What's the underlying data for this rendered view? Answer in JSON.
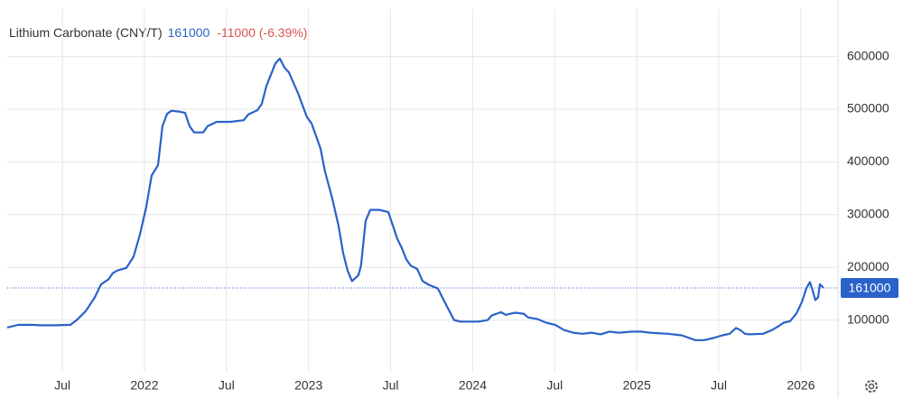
{
  "chart_data": {
    "type": "line",
    "title": "Lithium Carbonate (CNY/T)",
    "last_value": 161000,
    "change": "-11000 (-6.39%)",
    "color": "#2a62c9",
    "grid": true,
    "xlim": [
      2021.164,
      2026.226
    ],
    "ylim": [
      0,
      690000
    ],
    "xticks": [
      {
        "value": 2021.5,
        "label": "Jul"
      },
      2022,
      {
        "value": 2022.5,
        "label": "Jul"
      },
      2023,
      {
        "value": 2023.5,
        "label": "Jul"
      },
      2024,
      {
        "value": 2024.5,
        "label": "Jul"
      },
      2025,
      {
        "value": 2025.5,
        "label": "Jul"
      },
      2026
    ],
    "yticks": [
      100000,
      200000,
      300000,
      400000,
      500000,
      600000
    ],
    "x": [
      2021.164,
      2021.23,
      2021.312,
      2021.367,
      2021.45,
      2021.549,
      2021.587,
      2021.642,
      2021.697,
      2021.736,
      2021.78,
      2021.807,
      2021.835,
      2021.89,
      2021.934,
      2021.972,
      2022.011,
      2022.044,
      2022.083,
      2022.11,
      2022.138,
      2022.165,
      2022.22,
      2022.248,
      2022.275,
      2022.303,
      2022.358,
      2022.385,
      2022.44,
      2022.523,
      2022.605,
      2022.633,
      2022.688,
      2022.715,
      2022.743,
      2022.798,
      2022.825,
      2022.853,
      2022.88,
      2022.935,
      2022.99,
      2023.018,
      2023.045,
      2023.073,
      2023.1,
      2023.144,
      2023.183,
      2023.21,
      2023.238,
      2023.265,
      2023.304,
      2023.32,
      2023.348,
      2023.376,
      2023.431,
      2023.486,
      2023.541,
      2023.568,
      2023.596,
      2023.623,
      2023.662,
      2023.695,
      2023.733,
      2023.788,
      2023.843,
      2023.887,
      2023.926,
      2024.036,
      2024.091,
      2024.118,
      2024.146,
      2024.173,
      2024.201,
      2024.256,
      2024.311,
      2024.338,
      2024.393,
      2024.448,
      2024.503,
      2024.558,
      2024.613,
      2024.669,
      2024.724,
      2024.779,
      2024.834,
      2024.889,
      2024.971,
      2025.026,
      2025.081,
      2025.191,
      2025.274,
      2025.356,
      2025.411,
      2025.466,
      2025.521,
      2025.565,
      2025.604,
      2025.631,
      2025.659,
      2025.686,
      2025.769,
      2025.824,
      2025.862,
      2025.895,
      2025.934,
      2025.972,
      2026.006,
      2026.033,
      2026.055,
      2026.072,
      2026.088,
      2026.105,
      2026.116,
      2026.138
    ],
    "values": [
      86000,
      91000,
      91000,
      90000,
      90000,
      91000,
      100000,
      117000,
      143000,
      168000,
      177000,
      189000,
      194000,
      199000,
      220000,
      262000,
      314000,
      374000,
      394000,
      468000,
      491000,
      497000,
      495000,
      493000,
      468000,
      456000,
      456000,
      468000,
      476000,
      476000,
      479000,
      490000,
      498000,
      510000,
      544000,
      587000,
      596000,
      579000,
      570000,
      531000,
      485000,
      473000,
      450000,
      425000,
      382000,
      331000,
      279000,
      228000,
      194000,
      174000,
      185000,
      203000,
      288000,
      309000,
      309000,
      305000,
      254000,
      237000,
      215000,
      203000,
      197000,
      174000,
      167000,
      160000,
      126000,
      100000,
      97000,
      97000,
      100000,
      109000,
      112000,
      115000,
      110000,
      114000,
      112000,
      105000,
      102000,
      95000,
      91000,
      81000,
      76000,
      74000,
      76000,
      73000,
      78000,
      76000,
      78000,
      78000,
      76000,
      74000,
      71000,
      62000,
      62000,
      66000,
      71000,
      74000,
      85000,
      81000,
      74000,
      73000,
      74000,
      81000,
      88000,
      95000,
      98000,
      112000,
      134000,
      160000,
      172000,
      156000,
      138000,
      143000,
      168000,
      161000
    ]
  }
}
